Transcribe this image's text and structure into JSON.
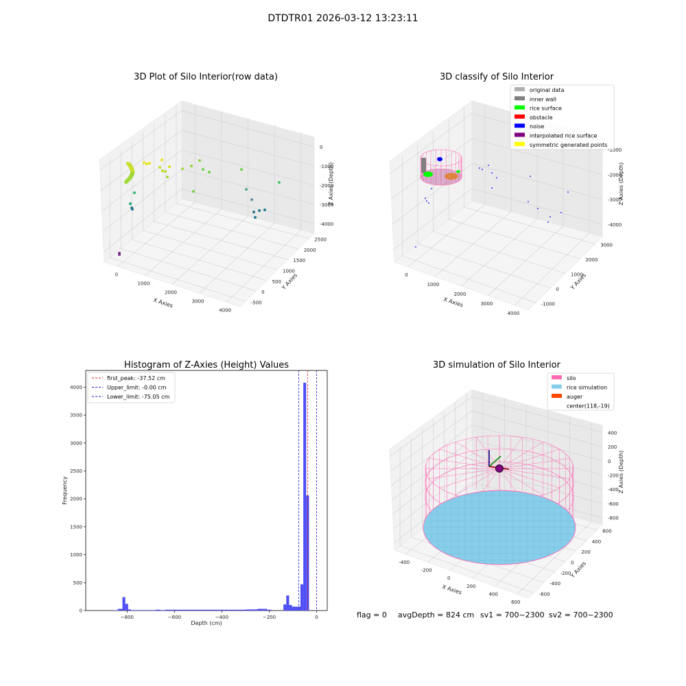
{
  "figure": {
    "suptitle": "DTDTR01 2026-03-12 13:23:11",
    "footer": {
      "flag": "flag = 0",
      "avg_depth": "avgDepth = 824 cm",
      "sv1": "sv1 = 700~2300",
      "sv2": "sv2 = 700~2300"
    }
  },
  "colors": {
    "histogram_bar": "#4f4ff5",
    "first_peak_line": "#e02020",
    "limit_lines": "#1a1ad0",
    "legend": {
      "original data": "#b0b0b0",
      "inner wall": "#808080",
      "rice surface": "#00ff00",
      "obstacle": "#ff0000",
      "noise": "#0000ff",
      "interpolated rice surface": "#800080",
      "symmetric generated points": "#ffff00",
      "silo": "#ff69b4",
      "rice simulation": "#87ceeb",
      "auger": "#ff4500"
    }
  },
  "plot1": {
    "title": "3D Plot of Silo Interior(row data)",
    "xlabel": "X Axies",
    "ylabel": "Y Axies",
    "zlabel": "Z Axies (Depth)",
    "xticks": [
      "0",
      "1000",
      "2000",
      "3000",
      "4000"
    ],
    "yticks": [
      "-500",
      "0",
      "500",
      "1000",
      "1500",
      "2000",
      "2500"
    ],
    "zticks": [
      "0",
      "-1000",
      "-2000",
      "-3000",
      "-4000"
    ]
  },
  "plot2": {
    "title": "3D classify of Silo Interior",
    "xlabel": "X Axies",
    "ylabel": "Y Axies",
    "zlabel": "Z Axies (Depth)",
    "xticks": [
      "0",
      "1000",
      "2000",
      "3000",
      "4000"
    ],
    "yticks": [
      "-1000",
      "0",
      "1000",
      "2000",
      "3000"
    ],
    "zticks": [
      "-1000",
      "-2000",
      "-3000",
      "-4000"
    ],
    "legend": [
      "original data",
      "inner wall",
      "rice surface",
      "obstacle",
      "noise",
      "interpolated rice surface",
      "symmetric generated points"
    ]
  },
  "plot3": {
    "title": "Histogram of Z-Axies (Height) Values",
    "xlabel": "Depth (cm)",
    "ylabel": "Frequency",
    "legend": [
      "first_peak: -37.52 cm",
      "Upper_limit: -0.00 cm",
      "Lower_limit: -75.05 cm"
    ]
  },
  "plot4": {
    "title": "3D simulation of Silo Interior",
    "xlabel": "X Axies",
    "ylabel": "Y Axies",
    "zlabel": "Z Axies (Depth)",
    "xticks": [
      "-400",
      "-200",
      "0",
      "200",
      "400",
      "600"
    ],
    "yticks": [
      "-600",
      "-400",
      "-200",
      "0",
      "200",
      "400",
      "600"
    ],
    "zticks": [
      "400",
      "200",
      "0",
      "-200",
      "-400",
      "-600",
      "-800"
    ],
    "legend": [
      "silo",
      "rice simulation",
      "auger",
      "center(118,-19)"
    ]
  },
  "chart_data": [
    {
      "type": "scatter",
      "title": "3D Plot of Silo Interior(row data)",
      "xlabel": "X Axies",
      "ylabel": "Y Axies",
      "zlabel": "Z Axies (Depth)",
      "xlim": [
        -500,
        4200
      ],
      "ylim": [
        -500,
        2700
      ],
      "zlim": [
        -4500,
        200
      ],
      "colormap": "viridis (by depth)",
      "points": [
        {
          "x": -100,
          "y": 2000,
          "z": -600,
          "cluster": "dense wall arc"
        },
        {
          "x": 150,
          "y": 2200,
          "z": -450
        },
        {
          "x": 400,
          "y": 1800,
          "z": -700
        },
        {
          "x": 1000,
          "y": 1500,
          "z": -1200
        },
        {
          "x": 2000,
          "y": 1000,
          "z": -1800
        },
        {
          "x": 2800,
          "y": 700,
          "z": -2600
        },
        {
          "x": 3300,
          "y": 500,
          "z": -3000
        },
        {
          "x": 0,
          "y": -300,
          "z": -4200
        }
      ]
    },
    {
      "type": "scatter",
      "title": "3D classify of Silo Interior",
      "xlabel": "X Axies",
      "ylabel": "Y Axies",
      "zlabel": "Z Axies (Depth)",
      "xlim": [
        -500,
        4200
      ],
      "ylim": [
        -1200,
        3200
      ],
      "zlim": [
        -4500,
        0
      ],
      "classes": [
        "original data",
        "inner wall",
        "rice surface",
        "obstacle",
        "noise",
        "interpolated rice surface",
        "symmetric generated points"
      ]
    },
    {
      "type": "bar",
      "title": "Histogram of Z-Axies (Height) Values",
      "xlabel": "Depth (cm)",
      "ylabel": "Frequency",
      "xlim": [
        -975,
        45
      ],
      "ylim": [
        0,
        4300
      ],
      "xticks": [
        -800,
        -600,
        -400,
        -200,
        0
      ],
      "yticks": [
        0,
        500,
        1000,
        1500,
        2000,
        2500,
        3000,
        3500,
        4000
      ],
      "bins": [
        {
          "x0": -860,
          "x1": -840,
          "value": 5
        },
        {
          "x0": -840,
          "x1": -820,
          "value": 30
        },
        {
          "x0": -820,
          "x1": -808,
          "value": 240
        },
        {
          "x0": -808,
          "x1": -796,
          "value": 120
        },
        {
          "x0": -796,
          "x1": -784,
          "value": 20
        },
        {
          "x0": -784,
          "x1": -680,
          "value": 8
        },
        {
          "x0": -680,
          "x1": -660,
          "value": 15
        },
        {
          "x0": -660,
          "x1": -640,
          "value": 8
        },
        {
          "x0": -640,
          "x1": -500,
          "value": 15
        },
        {
          "x0": -500,
          "x1": -300,
          "value": 15
        },
        {
          "x0": -300,
          "x1": -250,
          "value": 20
        },
        {
          "x0": -250,
          "x1": -210,
          "value": 30
        },
        {
          "x0": -210,
          "x1": -190,
          "value": 15
        },
        {
          "x0": -140,
          "x1": -128,
          "value": 110
        },
        {
          "x0": -128,
          "x1": -116,
          "value": 270
        },
        {
          "x0": -116,
          "x1": -104,
          "value": 100
        },
        {
          "x0": -104,
          "x1": -92,
          "value": 70
        },
        {
          "x0": -92,
          "x1": -80,
          "value": 70
        },
        {
          "x0": -80,
          "x1": -68,
          "value": 70
        },
        {
          "x0": -68,
          "x1": -56,
          "value": 470
        },
        {
          "x0": -56,
          "x1": -44,
          "value": 4080
        },
        {
          "x0": -44,
          "x1": -32,
          "value": 2060
        }
      ],
      "vlines": [
        {
          "name": "first_peak: -37.52 cm",
          "x": -37.52,
          "color": "red"
        },
        {
          "name": "Upper_limit: -0.00 cm",
          "x": 0,
          "color": "blue"
        },
        {
          "name": "Lower_limit: -75.05 cm",
          "x": -75.05,
          "color": "blue"
        }
      ],
      "legend_position": "upper-left"
    },
    {
      "type": "surface",
      "title": "3D simulation of Silo Interior",
      "xlabel": "X Axies",
      "ylabel": "Y Axies",
      "zlabel": "Z Axies (Depth)",
      "xlim": [
        -500,
        700
      ],
      "ylim": [
        -700,
        700
      ],
      "zlim": [
        -900,
        450
      ],
      "silo": {
        "center": [
          118,
          -19
        ],
        "radius": 600,
        "z_top": 0,
        "z_bottom": -800
      },
      "rice_surface_depth": -800,
      "auger_center": [
        118,
        -19
      ]
    }
  ]
}
